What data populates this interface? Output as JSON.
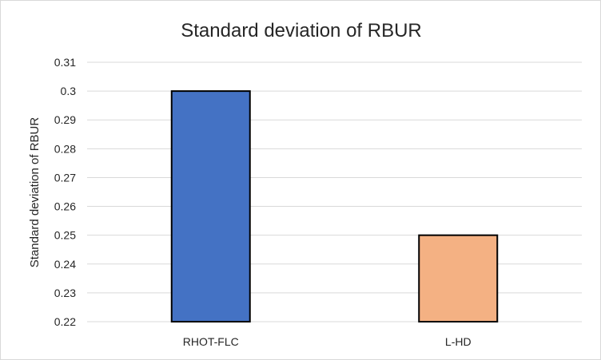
{
  "chart_data": {
    "type": "bar",
    "title": "Standard deviation of RBUR",
    "xlabel": "",
    "ylabel": "Standard deviation of RBUR",
    "categories": [
      "RHOT-FLC",
      "L-HD"
    ],
    "values": [
      0.3,
      0.25
    ],
    "bar_colors": [
      "#4472c4",
      "#f4b183"
    ],
    "ylim": [
      0.22,
      0.31
    ],
    "yticks": [
      0.22,
      0.23,
      0.24,
      0.25,
      0.26,
      0.27,
      0.28,
      0.29,
      0.3,
      0.31
    ],
    "ytick_labels": [
      "0.22",
      "0.23",
      "0.24",
      "0.25",
      "0.26",
      "0.27",
      "0.28",
      "0.29",
      "0.3",
      "0.31"
    ],
    "grid": true,
    "legend": "none"
  }
}
